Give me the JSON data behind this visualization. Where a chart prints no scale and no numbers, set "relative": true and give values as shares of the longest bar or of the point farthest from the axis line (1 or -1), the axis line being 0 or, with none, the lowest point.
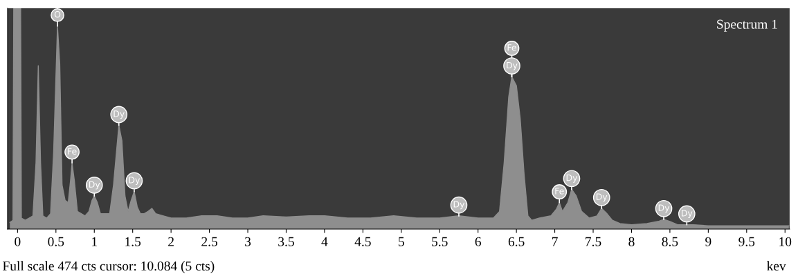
{
  "chart_data": {
    "type": "area",
    "relative": true,
    "xlabel": "kev",
    "x": [
      -0.1,
      -0.06,
      -0.05,
      0.04,
      0.05,
      0.1,
      0.15,
      0.2,
      0.24,
      0.27,
      0.3,
      0.33,
      0.38,
      0.43,
      0.47,
      0.52,
      0.55,
      0.58,
      0.62,
      0.66,
      0.69,
      0.71,
      0.74,
      0.78,
      0.83,
      0.88,
      0.93,
      0.97,
      1.0,
      1.04,
      1.08,
      1.14,
      1.2,
      1.25,
      1.32,
      1.36,
      1.4,
      1.44,
      1.48,
      1.52,
      1.56,
      1.6,
      1.65,
      1.7,
      1.75,
      1.8,
      1.9,
      2.0,
      2.2,
      2.4,
      2.6,
      2.8,
      3.0,
      3.2,
      3.5,
      3.8,
      4.0,
      4.3,
      4.6,
      4.9,
      5.2,
      5.5,
      5.75,
      6.0,
      6.2,
      6.28,
      6.34,
      6.4,
      6.44,
      6.5,
      6.55,
      6.6,
      6.65,
      6.7,
      6.8,
      6.95,
      7.02,
      7.06,
      7.1,
      7.17,
      7.22,
      7.28,
      7.35,
      7.45,
      7.55,
      7.61,
      7.68,
      7.75,
      7.85,
      8.0,
      8.2,
      8.35,
      8.42,
      8.5,
      8.6,
      8.8,
      9.0,
      9.3,
      9.6,
      9.9,
      10.05
    ],
    "series": [
      {
        "color": "#8e8e8e",
        "values": [
          0.03,
          0.04,
          1.0,
          1.0,
          0.05,
          0.04,
          0.05,
          0.06,
          0.3,
          0.74,
          0.3,
          0.06,
          0.05,
          0.07,
          0.35,
          0.92,
          0.75,
          0.2,
          0.13,
          0.12,
          0.22,
          0.3,
          0.22,
          0.08,
          0.07,
          0.06,
          0.08,
          0.13,
          0.15,
          0.12,
          0.07,
          0.07,
          0.07,
          0.2,
          0.47,
          0.4,
          0.15,
          0.08,
          0.13,
          0.17,
          0.1,
          0.07,
          0.07,
          0.08,
          0.094,
          0.07,
          0.06,
          0.05,
          0.05,
          0.06,
          0.06,
          0.05,
          0.05,
          0.06,
          0.055,
          0.06,
          0.06,
          0.05,
          0.05,
          0.06,
          0.05,
          0.05,
          0.06,
          0.05,
          0.05,
          0.08,
          0.3,
          0.6,
          0.69,
          0.65,
          0.5,
          0.25,
          0.06,
          0.04,
          0.05,
          0.06,
          0.09,
          0.12,
          0.08,
          0.12,
          0.18,
          0.15,
          0.08,
          0.05,
          0.06,
          0.094,
          0.07,
          0.04,
          0.025,
          0.02,
          0.025,
          0.035,
          0.044,
          0.035,
          0.02,
          0.02,
          0.015,
          0.015,
          0.015,
          0.015,
          0.015
        ]
      }
    ],
    "xlim": [
      -0.13,
      10.06
    ],
    "xticks": [
      0,
      {
        "value": 0.5,
        "label": "0.5"
      },
      1,
      {
        "value": 1.5,
        "label": "1.5"
      },
      2,
      {
        "value": 2.5,
        "label": "2.5"
      },
      3,
      {
        "value": 3.5,
        "label": "3.5"
      },
      4,
      {
        "value": 4.5,
        "label": "4.5"
      },
      5,
      {
        "value": 5.5,
        "label": "5.5"
      },
      6,
      {
        "value": 6.5,
        "label": "6.5"
      },
      7,
      {
        "value": 7.5,
        "label": "7.5"
      },
      8,
      {
        "value": 8.5,
        "label": "8.5"
      },
      9,
      {
        "value": 9.5,
        "label": "9.5"
      },
      10
    ],
    "grid": false,
    "annotations": [
      {
        "text": "O",
        "x": 0.52,
        "y": 0.92
      },
      {
        "text": "Fe",
        "x": 0.71,
        "y": 0.3
      },
      {
        "text": "Dy",
        "x": 1.0,
        "y": 0.15
      },
      {
        "text": "Dy",
        "x": 1.32,
        "y": 0.47
      },
      {
        "text": "Dy",
        "x": 1.52,
        "y": 0.17
      },
      {
        "text": "Dy",
        "x": 5.75,
        "y": 0.06
      },
      {
        "text": "Fe",
        "x": 6.44,
        "y": 0.69
      },
      {
        "text": "Dy",
        "x": 6.44,
        "y": 0.69
      },
      {
        "text": "Fe",
        "x": 7.06,
        "y": 0.12
      },
      {
        "text": "Dy",
        "x": 7.22,
        "y": 0.18
      },
      {
        "text": "Dy",
        "x": 7.61,
        "y": 0.094
      },
      {
        "text": "Dy",
        "x": 8.42,
        "y": 0.044
      },
      {
        "text": "Dy",
        "x": 8.72,
        "y": 0.02
      },
      "Spectrum 1",
      "Full scale 474 cts cursor: 10.084 (5 cts)"
    ]
  }
}
